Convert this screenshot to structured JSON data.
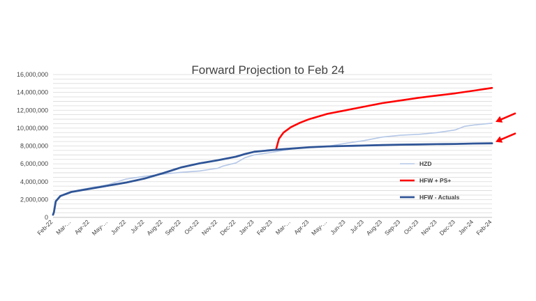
{
  "chart_data": {
    "type": "line",
    "title": "Forward Projection to Feb 24",
    "xlabel": "",
    "ylabel": "",
    "ylim": [
      0,
      16000000
    ],
    "yticks": [
      "0",
      "2,000,000",
      "4,000,000",
      "6,000,000",
      "8,000,000",
      "10,000,000",
      "12,000,000",
      "14,000,000",
      "16,000,000"
    ],
    "categories": [
      "Feb-22",
      "Mar-…",
      "Apr-22",
      "May-…",
      "Jun-22",
      "Jul-22",
      "Aug-22",
      "Sep-22",
      "Oct-22",
      "Nov-22",
      "Dec-22",
      "Jan-23",
      "Feb-23",
      "Mar-…",
      "Apr-23",
      "May-…",
      "Jun-23",
      "Jul-23",
      "Aug-23",
      "Sep-23",
      "Oct-23",
      "Nov-23",
      "Dec-23",
      "Jan-24",
      "Feb-24"
    ],
    "grid": true,
    "legend": "right",
    "series": [
      {
        "name": "HZD",
        "color": "#b4c7e7",
        "points": [
          [
            0,
            300000
          ],
          [
            0.05,
            600000
          ],
          [
            0.15,
            1800000
          ],
          [
            0.4,
            2400000
          ],
          [
            1,
            2900000
          ],
          [
            2,
            3300000
          ],
          [
            3,
            3650000
          ],
          [
            4,
            4300000
          ],
          [
            5,
            4600000
          ],
          [
            6,
            4850000
          ],
          [
            7,
            5050000
          ],
          [
            8,
            5200000
          ],
          [
            9,
            5500000
          ],
          [
            9.3,
            5750000
          ],
          [
            10,
            6100000
          ],
          [
            10.5,
            6700000
          ],
          [
            11,
            7000000
          ],
          [
            12,
            7300000
          ],
          [
            13,
            7650000
          ],
          [
            14,
            7850000
          ],
          [
            15,
            7950000
          ],
          [
            16,
            8300000
          ],
          [
            17,
            8600000
          ],
          [
            18,
            9000000
          ],
          [
            19,
            9200000
          ],
          [
            20,
            9300000
          ],
          [
            21,
            9500000
          ],
          [
            22,
            9800000
          ],
          [
            22.5,
            10200000
          ],
          [
            23,
            10350000
          ],
          [
            24,
            10550000
          ]
        ]
      },
      {
        "name": "HFW + PS+",
        "color": "#ff0000",
        "points": [
          [
            12.2,
            7650000
          ],
          [
            12.35,
            8800000
          ],
          [
            12.6,
            9500000
          ],
          [
            13,
            10100000
          ],
          [
            13.5,
            10600000
          ],
          [
            14,
            11000000
          ],
          [
            15,
            11600000
          ],
          [
            16,
            12000000
          ],
          [
            17,
            12400000
          ],
          [
            18,
            12800000
          ],
          [
            19,
            13100000
          ],
          [
            20,
            13400000
          ],
          [
            21,
            13650000
          ],
          [
            22,
            13900000
          ],
          [
            23,
            14200000
          ],
          [
            24,
            14500000
          ]
        ]
      },
      {
        "name": "HFW - Actuals",
        "color": "#2f5597",
        "points": [
          [
            0,
            300000
          ],
          [
            0.05,
            600000
          ],
          [
            0.15,
            1800000
          ],
          [
            0.4,
            2400000
          ],
          [
            1,
            2850000
          ],
          [
            2,
            3200000
          ],
          [
            3,
            3550000
          ],
          [
            4,
            3900000
          ],
          [
            5,
            4350000
          ],
          [
            6,
            4950000
          ],
          [
            7,
            5600000
          ],
          [
            8,
            6050000
          ],
          [
            9,
            6400000
          ],
          [
            10,
            6800000
          ],
          [
            10.5,
            7100000
          ],
          [
            11,
            7350000
          ],
          [
            12,
            7550000
          ],
          [
            13,
            7700000
          ],
          [
            14,
            7850000
          ],
          [
            15,
            7950000
          ],
          [
            16,
            8000000
          ],
          [
            17,
            8050000
          ],
          [
            18,
            8100000
          ],
          [
            19,
            8150000
          ],
          [
            20,
            8170000
          ],
          [
            21,
            8200000
          ],
          [
            22,
            8230000
          ],
          [
            23,
            8270000
          ],
          [
            24,
            8300000
          ]
        ]
      }
    ],
    "annotations": [
      {
        "name": "arrow-hzd",
        "color": "#ff0000",
        "points_to": "HZD"
      },
      {
        "name": "arrow-hfw-actuals",
        "color": "#ff0000",
        "points_to": "HFW - Actuals"
      }
    ]
  }
}
